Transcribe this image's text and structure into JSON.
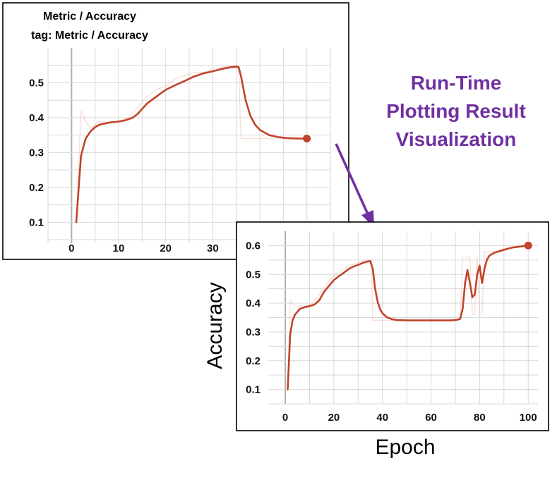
{
  "heading": {
    "lines": [
      "Run-Time",
      "Plotting Result",
      "Visualization"
    ],
    "color": "#7030a0"
  },
  "colors": {
    "smoothed": "#c0442a",
    "raw": "#f2b3a6",
    "arrow": "#7030a0"
  },
  "chart_data": [
    {
      "type": "line",
      "title": "Metric / Accuracy",
      "subtitle": "tag: Metric / Accuracy",
      "xlabel": "",
      "ylabel": "",
      "x_ticks": [
        0,
        10,
        20,
        30
      ],
      "y_ticks": [
        0.1,
        0.2,
        0.3,
        0.4,
        0.5
      ],
      "x_tick_labels": [
        "0",
        "10",
        "20",
        "30"
      ],
      "y_tick_labels": [
        "0.1",
        "0.2",
        "0.3",
        "0.4",
        "0.5"
      ],
      "grid": true,
      "series": [
        {
          "x": [
            1,
            2,
            3,
            4,
            5,
            6,
            8,
            10,
            11,
            12,
            13,
            14,
            16,
            18,
            20,
            22,
            24,
            26,
            28,
            30,
            32,
            34,
            35,
            35.5,
            36,
            37,
            38,
            39,
            40,
            42,
            44,
            46,
            48,
            50
          ],
          "y": [
            0.1,
            0.29,
            0.34,
            0.36,
            0.373,
            0.38,
            0.386,
            0.389,
            0.391,
            0.395,
            0.4,
            0.41,
            0.44,
            0.46,
            0.48,
            0.493,
            0.505,
            0.518,
            0.527,
            0.533,
            0.54,
            0.545,
            0.546,
            0.545,
            0.52,
            0.45,
            0.405,
            0.38,
            0.365,
            0.35,
            0.344,
            0.341,
            0.34,
            0.34
          ]
        }
      ],
      "raw_series": {
        "x": [
          1,
          2,
          3,
          4,
          6,
          8,
          10,
          12,
          14,
          16,
          18,
          20,
          22,
          24,
          26,
          28,
          30,
          32,
          34,
          35.5,
          36,
          37,
          40,
          44,
          48,
          50
        ],
        "y": [
          0.1,
          0.42,
          0.39,
          0.37,
          0.39,
          0.385,
          0.39,
          0.4,
          0.43,
          0.46,
          0.48,
          0.49,
          0.51,
          0.52,
          0.53,
          0.53,
          0.54,
          0.545,
          0.55,
          0.55,
          0.34,
          0.34,
          0.34,
          0.34,
          0.34,
          0.34
        ]
      },
      "final_point": {
        "x": 50,
        "y": 0.34
      },
      "xlim": [
        -5,
        55
      ],
      "ylim": [
        0.04,
        0.6
      ]
    },
    {
      "type": "line",
      "title": "",
      "xlabel": "Epoch",
      "ylabel": "Accuracy",
      "x_ticks": [
        0,
        20,
        40,
        60,
        80,
        100
      ],
      "y_ticks": [
        0.1,
        0.2,
        0.3,
        0.4,
        0.5,
        0.6
      ],
      "x_tick_labels": [
        "0",
        "20",
        "40",
        "60",
        "80",
        "100"
      ],
      "y_tick_labels": [
        "0.1",
        "0.2",
        "0.3",
        "0.4",
        "0.5",
        "0.6"
      ],
      "grid": true,
      "series": [
        {
          "x": [
            1,
            2,
            3,
            4,
            6,
            8,
            10,
            12,
            14,
            16,
            18,
            20,
            22,
            24,
            26,
            28,
            30,
            32,
            34,
            35,
            36,
            37,
            38,
            39,
            40,
            42,
            44,
            46,
            50,
            55,
            60,
            65,
            68,
            70,
            72,
            73,
            74,
            75,
            76,
            77,
            78,
            79,
            80,
            81,
            82,
            83,
            84,
            86,
            88,
            90,
            92,
            94,
            96,
            98,
            100
          ],
          "y": [
            0.1,
            0.29,
            0.34,
            0.36,
            0.38,
            0.386,
            0.39,
            0.395,
            0.41,
            0.44,
            0.46,
            0.48,
            0.493,
            0.505,
            0.518,
            0.527,
            0.533,
            0.54,
            0.545,
            0.546,
            0.52,
            0.45,
            0.405,
            0.38,
            0.365,
            0.35,
            0.344,
            0.341,
            0.34,
            0.34,
            0.34,
            0.34,
            0.34,
            0.341,
            0.345,
            0.38,
            0.47,
            0.515,
            0.47,
            0.42,
            0.43,
            0.5,
            0.53,
            0.47,
            0.52,
            0.55,
            0.565,
            0.575,
            0.58,
            0.585,
            0.59,
            0.594,
            0.596,
            0.598,
            0.6
          ]
        }
      ],
      "raw_series": {
        "x": [
          1,
          2,
          4,
          6,
          10,
          14,
          18,
          22,
          26,
          30,
          34,
          35.5,
          36,
          37,
          40,
          50,
          60,
          70,
          72,
          73,
          74,
          75,
          76,
          77,
          78,
          79,
          80,
          81,
          82,
          83,
          84,
          86,
          90,
          95,
          100
        ],
        "y": [
          0.1,
          0.41,
          0.39,
          0.39,
          0.39,
          0.43,
          0.48,
          0.51,
          0.53,
          0.54,
          0.55,
          0.55,
          0.34,
          0.34,
          0.34,
          0.34,
          0.34,
          0.34,
          0.35,
          0.56,
          0.56,
          0.56,
          0.56,
          0.36,
          0.36,
          0.56,
          0.36,
          0.36,
          0.58,
          0.58,
          0.58,
          0.58,
          0.59,
          0.595,
          0.6
        ]
      },
      "final_point": {
        "x": 100,
        "y": 0.6
      },
      "xlim": [
        -7,
        104
      ],
      "ylim": [
        0.05,
        0.65
      ]
    }
  ]
}
